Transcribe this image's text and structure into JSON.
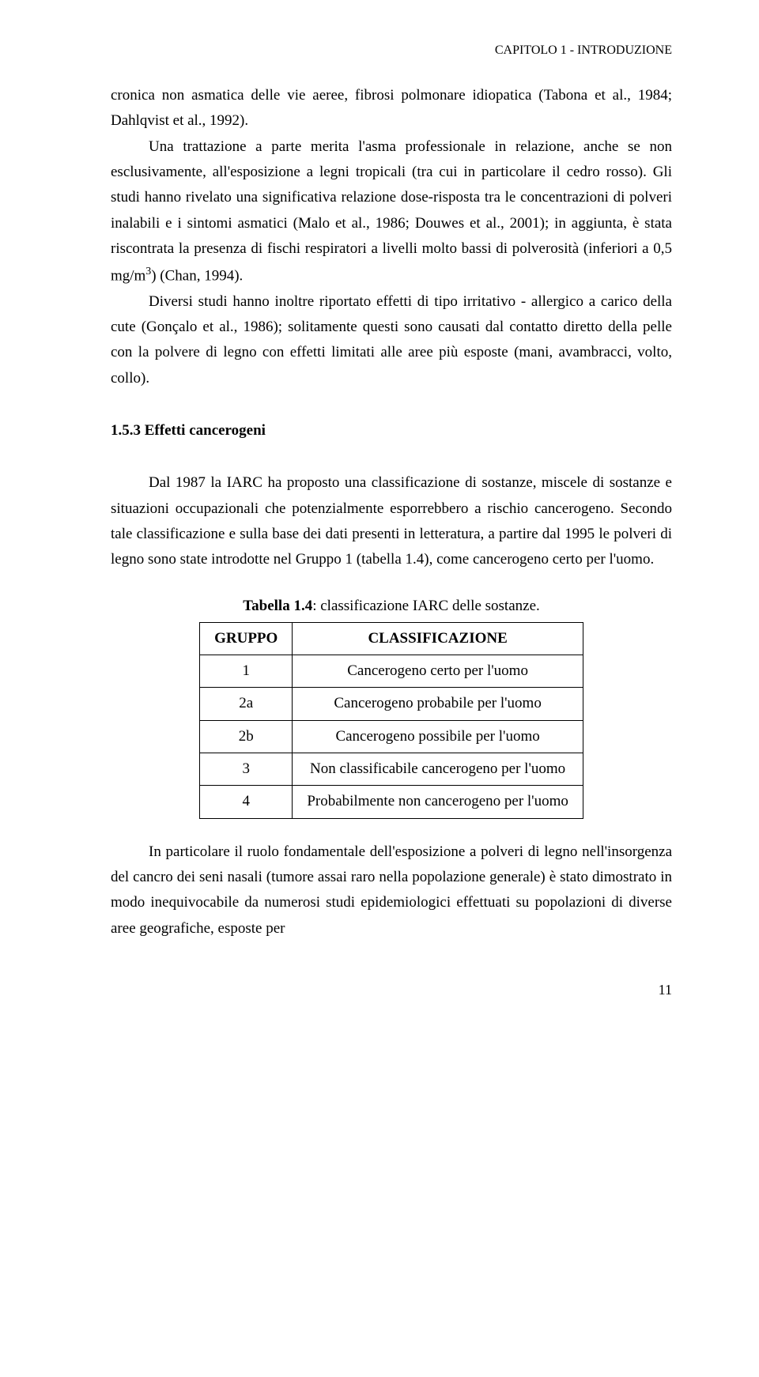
{
  "header": "CAPITOLO 1 - INTRODUZIONE",
  "p1": "cronica non asmatica delle vie aeree, fibrosi polmonare idiopatica (Tabona et al., 1984; Dahlqvist et al., 1992).",
  "p2a": "Una trattazione a parte merita l'asma professionale in relazione, anche se non esclusivamente, all'esposizione a legni tropicali (tra cui in particolare il cedro rosso). Gli studi hanno rivelato una significativa relazione dose-risposta tra le concentrazioni di polveri inalabili e i sintomi asmatici (Malo et al., 1986; Douwes et al., 2001); in aggiunta, è stata riscontrata la presenza di fischi respiratori a livelli molto bassi di polverosità (inferiori a 0,5 mg/m",
  "p2sup": "3",
  "p2b": ") (Chan, 1994).",
  "p3": "Diversi studi hanno inoltre riportato effetti di tipo irritativo - allergico a carico della cute (Gonçalo et al., 1986); solitamente questi sono causati dal contatto diretto della pelle con la polvere di legno con effetti limitati alle aree più esposte (mani, avambracci, volto, collo).",
  "sec_heading": "1.5.3 Effetti cancerogeni",
  "p4": "Dal 1987 la IARC ha proposto una classificazione di sostanze, miscele di sostanze e situazioni occupazionali che potenzialmente esporrebbero a rischio cancerogeno. Secondo tale classificazione e sulla base dei dati presenti in letteratura, a partire dal 1995 le polveri di legno sono state introdotte nel Gruppo 1 (tabella 1.4), come cancerogeno certo per l'uomo.",
  "table_caption_a": "Tabella 1.4",
  "table_caption_b": ": classificazione IARC delle sostanze.",
  "table": {
    "headers": [
      "GRUPPO",
      "CLASSIFICAZIONE"
    ],
    "rows": [
      [
        "1",
        "Cancerogeno certo per l'uomo"
      ],
      [
        "2a",
        "Cancerogeno probabile per l'uomo"
      ],
      [
        "2b",
        "Cancerogeno possibile per l'uomo"
      ],
      [
        "3",
        "Non classificabile cancerogeno per l'uomo"
      ],
      [
        "4",
        "Probabilmente non cancerogeno per l'uomo"
      ]
    ]
  },
  "p5": "In particolare il ruolo fondamentale dell'esposizione a polveri di legno nell'insorgenza del cancro dei seni nasali (tumore assai raro nella popolazione generale) è stato dimostrato in modo inequivocabile da numerosi studi epidemiologici effettuati su popolazioni di diverse aree geografiche, esposte per",
  "page_number": "11"
}
